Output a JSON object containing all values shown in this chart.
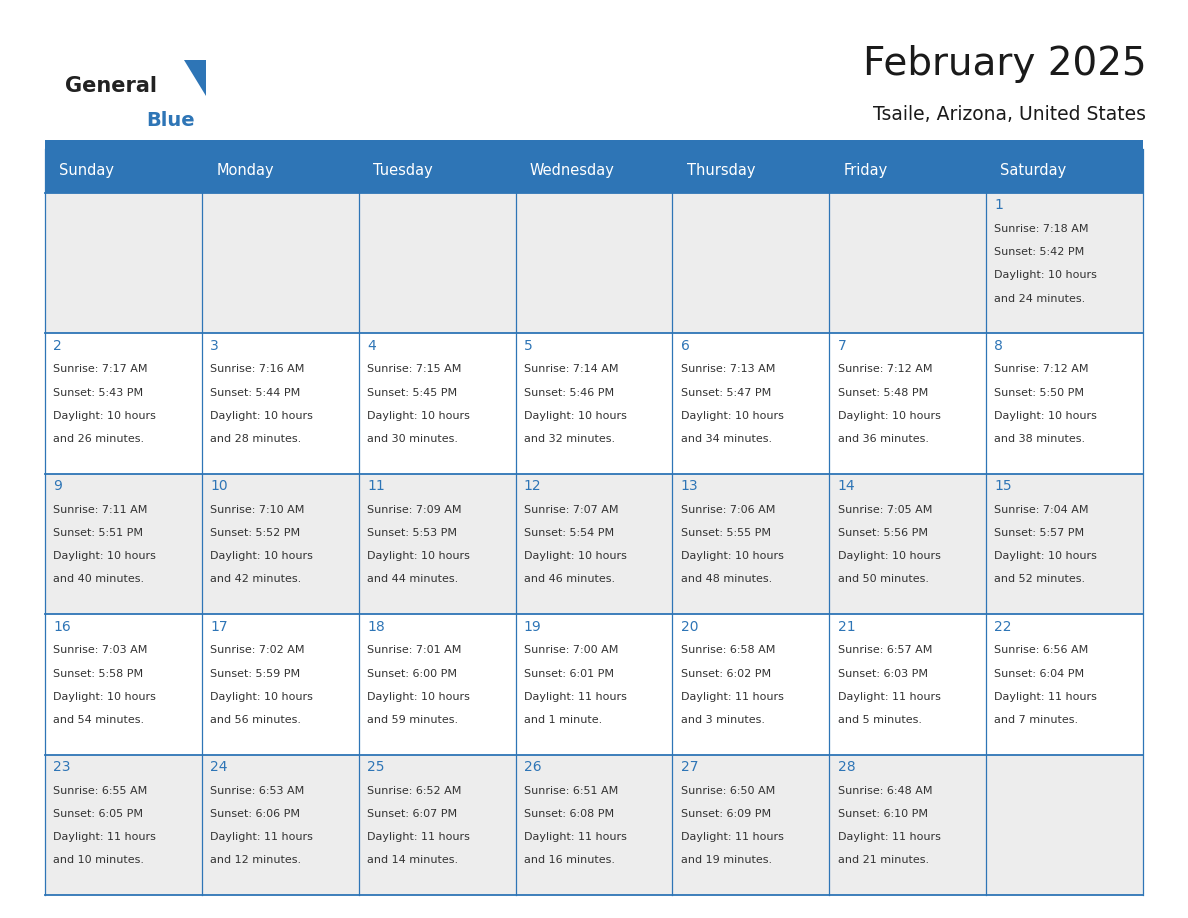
{
  "title": "February 2025",
  "subtitle": "Tsaile, Arizona, United States",
  "header_bg": "#2E75B6",
  "header_text": "#FFFFFF",
  "cell_bg_odd": "#EDEDED",
  "cell_bg_even": "#FFFFFF",
  "cell_border": "#2E75B6",
  "day_text_color": "#2E75B6",
  "info_text_color": "#333333",
  "days_of_week": [
    "Sunday",
    "Monday",
    "Tuesday",
    "Wednesday",
    "Thursday",
    "Friday",
    "Saturday"
  ],
  "calendar": [
    [
      null,
      null,
      null,
      null,
      null,
      null,
      {
        "day": "1",
        "sunrise": "7:18 AM",
        "sunset": "5:42 PM",
        "daylight": "10 hours",
        "daylight2": "and 24 minutes."
      }
    ],
    [
      {
        "day": "2",
        "sunrise": "7:17 AM",
        "sunset": "5:43 PM",
        "daylight": "10 hours",
        "daylight2": "and 26 minutes."
      },
      {
        "day": "3",
        "sunrise": "7:16 AM",
        "sunset": "5:44 PM",
        "daylight": "10 hours",
        "daylight2": "and 28 minutes."
      },
      {
        "day": "4",
        "sunrise": "7:15 AM",
        "sunset": "5:45 PM",
        "daylight": "10 hours",
        "daylight2": "and 30 minutes."
      },
      {
        "day": "5",
        "sunrise": "7:14 AM",
        "sunset": "5:46 PM",
        "daylight": "10 hours",
        "daylight2": "and 32 minutes."
      },
      {
        "day": "6",
        "sunrise": "7:13 AM",
        "sunset": "5:47 PM",
        "daylight": "10 hours",
        "daylight2": "and 34 minutes."
      },
      {
        "day": "7",
        "sunrise": "7:12 AM",
        "sunset": "5:48 PM",
        "daylight": "10 hours",
        "daylight2": "and 36 minutes."
      },
      {
        "day": "8",
        "sunrise": "7:12 AM",
        "sunset": "5:50 PM",
        "daylight": "10 hours",
        "daylight2": "and 38 minutes."
      }
    ],
    [
      {
        "day": "9",
        "sunrise": "7:11 AM",
        "sunset": "5:51 PM",
        "daylight": "10 hours",
        "daylight2": "and 40 minutes."
      },
      {
        "day": "10",
        "sunrise": "7:10 AM",
        "sunset": "5:52 PM",
        "daylight": "10 hours",
        "daylight2": "and 42 minutes."
      },
      {
        "day": "11",
        "sunrise": "7:09 AM",
        "sunset": "5:53 PM",
        "daylight": "10 hours",
        "daylight2": "and 44 minutes."
      },
      {
        "day": "12",
        "sunrise": "7:07 AM",
        "sunset": "5:54 PM",
        "daylight": "10 hours",
        "daylight2": "and 46 minutes."
      },
      {
        "day": "13",
        "sunrise": "7:06 AM",
        "sunset": "5:55 PM",
        "daylight": "10 hours",
        "daylight2": "and 48 minutes."
      },
      {
        "day": "14",
        "sunrise": "7:05 AM",
        "sunset": "5:56 PM",
        "daylight": "10 hours",
        "daylight2": "and 50 minutes."
      },
      {
        "day": "15",
        "sunrise": "7:04 AM",
        "sunset": "5:57 PM",
        "daylight": "10 hours",
        "daylight2": "and 52 minutes."
      }
    ],
    [
      {
        "day": "16",
        "sunrise": "7:03 AM",
        "sunset": "5:58 PM",
        "daylight": "10 hours",
        "daylight2": "and 54 minutes."
      },
      {
        "day": "17",
        "sunrise": "7:02 AM",
        "sunset": "5:59 PM",
        "daylight": "10 hours",
        "daylight2": "and 56 minutes."
      },
      {
        "day": "18",
        "sunrise": "7:01 AM",
        "sunset": "6:00 PM",
        "daylight": "10 hours",
        "daylight2": "and 59 minutes."
      },
      {
        "day": "19",
        "sunrise": "7:00 AM",
        "sunset": "6:01 PM",
        "daylight": "11 hours",
        "daylight2": "and 1 minute."
      },
      {
        "day": "20",
        "sunrise": "6:58 AM",
        "sunset": "6:02 PM",
        "daylight": "11 hours",
        "daylight2": "and 3 minutes."
      },
      {
        "day": "21",
        "sunrise": "6:57 AM",
        "sunset": "6:03 PM",
        "daylight": "11 hours",
        "daylight2": "and 5 minutes."
      },
      {
        "day": "22",
        "sunrise": "6:56 AM",
        "sunset": "6:04 PM",
        "daylight": "11 hours",
        "daylight2": "and 7 minutes."
      }
    ],
    [
      {
        "day": "23",
        "sunrise": "6:55 AM",
        "sunset": "6:05 PM",
        "daylight": "11 hours",
        "daylight2": "and 10 minutes."
      },
      {
        "day": "24",
        "sunrise": "6:53 AM",
        "sunset": "6:06 PM",
        "daylight": "11 hours",
        "daylight2": "and 12 minutes."
      },
      {
        "day": "25",
        "sunrise": "6:52 AM",
        "sunset": "6:07 PM",
        "daylight": "11 hours",
        "daylight2": "and 14 minutes."
      },
      {
        "day": "26",
        "sunrise": "6:51 AM",
        "sunset": "6:08 PM",
        "daylight": "11 hours",
        "daylight2": "and 16 minutes."
      },
      {
        "day": "27",
        "sunrise": "6:50 AM",
        "sunset": "6:09 PM",
        "daylight": "11 hours",
        "daylight2": "and 19 minutes."
      },
      {
        "day": "28",
        "sunrise": "6:48 AM",
        "sunset": "6:10 PM",
        "daylight": "11 hours",
        "daylight2": "and 21 minutes."
      },
      null
    ]
  ],
  "logo_general_color": "#222222",
  "logo_blue_color": "#2E75B6",
  "header_stripe_color": "#2E75B6",
  "fig_width": 11.88,
  "fig_height": 9.18,
  "dpi": 100
}
